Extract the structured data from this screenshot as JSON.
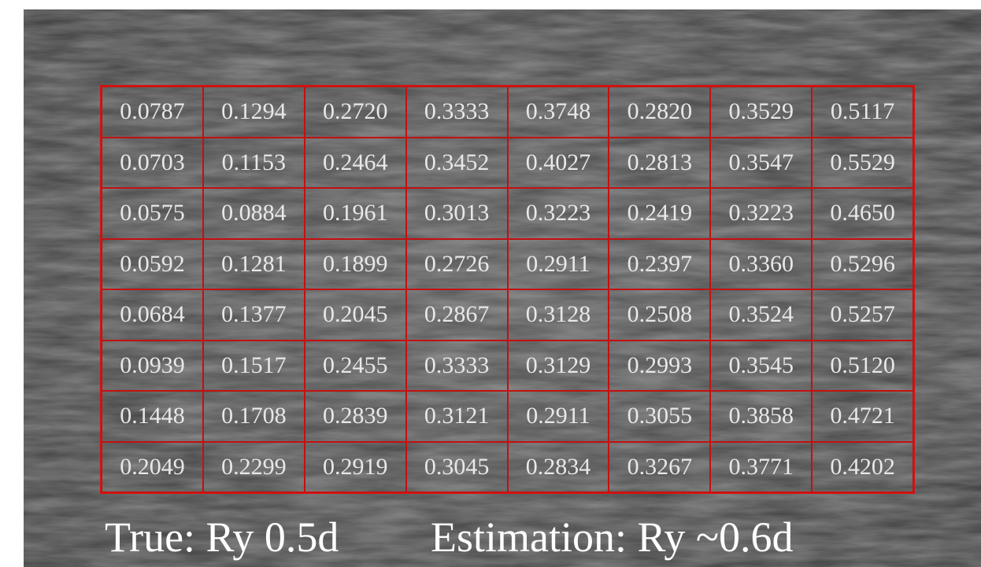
{
  "table": {
    "rows": [
      [
        "0.0787",
        "0.1294",
        "0.2720",
        "0.3333",
        "0.3748",
        "0.2820",
        "0.3529",
        "0.5117"
      ],
      [
        "0.0703",
        "0.1153",
        "0.2464",
        "0.3452",
        "0.4027",
        "0.2813",
        "0.3547",
        "0.5529"
      ],
      [
        "0.0575",
        "0.0884",
        "0.1961",
        "0.3013",
        "0.3223",
        "0.2419",
        "0.3223",
        "0.4650"
      ],
      [
        "0.0592",
        "0.1281",
        "0.1899",
        "0.2726",
        "0.2911",
        "0.2397",
        "0.3360",
        "0.5296"
      ],
      [
        "0.0684",
        "0.1377",
        "0.2045",
        "0.2867",
        "0.3128",
        "0.2508",
        "0.3524",
        "0.5257"
      ],
      [
        "0.0939",
        "0.1517",
        "0.2455",
        "0.3333",
        "0.3129",
        "0.2993",
        "0.3545",
        "0.5120"
      ],
      [
        "0.1448",
        "0.1708",
        "0.2839",
        "0.3121",
        "0.2911",
        "0.3055",
        "0.3858",
        "0.4721"
      ],
      [
        "0.2049",
        "0.2299",
        "0.2919",
        "0.3045",
        "0.2834",
        "0.3267",
        "0.3771",
        "0.4202"
      ]
    ]
  },
  "caption": {
    "truth": "True: Ry 0.5d",
    "estimate": "Estimation: Ry ~0.6d"
  }
}
